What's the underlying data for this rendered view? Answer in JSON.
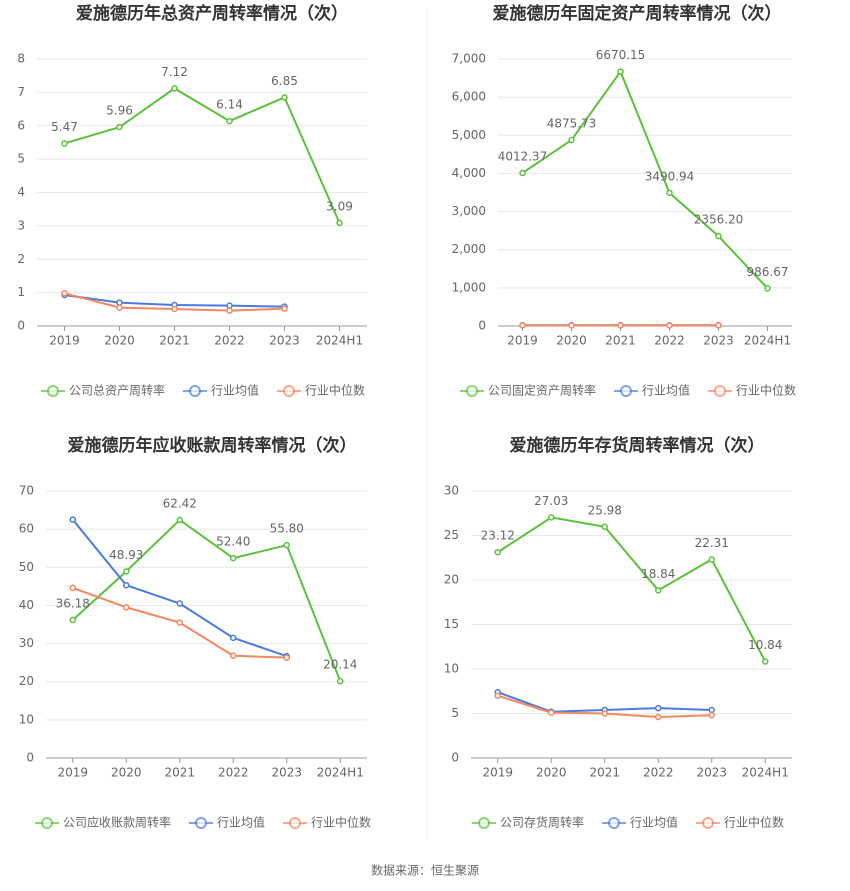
{
  "chart_data": [
    {
      "type": "line",
      "title": "爱施德历年总资产周转率情况（次）",
      "categories": [
        "2019",
        "2020",
        "2021",
        "2022",
        "2023",
        "2024H1"
      ],
      "series": [
        {
          "name": "公司总资产周转率",
          "color": "#5ac23a",
          "values": [
            5.47,
            5.96,
            7.12,
            6.14,
            6.85,
            3.09
          ],
          "value_labels": [
            "5.47",
            "5.96",
            "7.12",
            "6.14",
            "6.85",
            "3.09"
          ]
        },
        {
          "name": "行业均值",
          "color": "#4a7be0",
          "values": [
            0.93,
            0.7,
            0.63,
            0.61,
            0.58,
            null
          ]
        },
        {
          "name": "行业中位数",
          "color": "#f5875f",
          "values": [
            0.98,
            0.55,
            0.51,
            0.46,
            0.52,
            null
          ]
        }
      ],
      "ylim": [
        0,
        8
      ],
      "yticks": [
        0,
        1,
        2,
        3,
        4,
        5,
        6,
        7,
        8
      ],
      "grid": true,
      "legend": "bottom"
    },
    {
      "type": "line",
      "title": "爱施德历年固定资产周转率情况（次）",
      "categories": [
        "2019",
        "2020",
        "2021",
        "2022",
        "2023",
        "2024H1"
      ],
      "series": [
        {
          "name": "公司固定资产周转率",
          "color": "#5ac23a",
          "values": [
            4012.37,
            4875.73,
            6670.15,
            3490.94,
            2356.2,
            986.67
          ],
          "value_labels": [
            "4012.37",
            "4875.73",
            "6670.15",
            "3490.94",
            "2356.20",
            "986.67"
          ]
        },
        {
          "name": "行业均值",
          "color": "#4a7be0",
          "values": [
            20,
            20,
            21,
            20,
            20,
            null
          ]
        },
        {
          "name": "行业中位数",
          "color": "#f5875f",
          "values": [
            15,
            14,
            15,
            14,
            15,
            null
          ]
        }
      ],
      "ylim": [
        0,
        7000
      ],
      "yticks": [
        0,
        {
          "value": 1000,
          "label": "1,000"
        },
        {
          "value": 2000,
          "label": "2,000"
        },
        {
          "value": 3000,
          "label": "3,000"
        },
        {
          "value": 4000,
          "label": "4,000"
        },
        {
          "value": 5000,
          "label": "5,000"
        },
        {
          "value": 6000,
          "label": "6,000"
        },
        {
          "value": 7000,
          "label": "7,000"
        }
      ],
      "grid": true,
      "legend": "bottom"
    },
    {
      "type": "line",
      "title": "爱施德历年应收账款周转率情况（次）",
      "categories": [
        "2019",
        "2020",
        "2021",
        "2022",
        "2023",
        "2024H1"
      ],
      "series": [
        {
          "name": "公司应收账款周转率",
          "color": "#5ac23a",
          "values": [
            36.18,
            48.93,
            62.42,
            52.4,
            55.8,
            20.14
          ],
          "value_labels": [
            "36.18",
            "48.93",
            "62.42",
            "52.40",
            "55.80",
            "20.14"
          ]
        },
        {
          "name": "行业均值",
          "color": "#4a7be0",
          "values": [
            62.5,
            45.3,
            40.5,
            31.5,
            26.7,
            null
          ]
        },
        {
          "name": "行业中位数",
          "color": "#f5875f",
          "values": [
            44.6,
            39.5,
            35.5,
            26.8,
            26.3,
            null
          ]
        }
      ],
      "ylim": [
        0,
        70
      ],
      "yticks": [
        0,
        10,
        20,
        30,
        40,
        50,
        60,
        70
      ],
      "grid": true,
      "legend": "bottom"
    },
    {
      "type": "line",
      "title": "爱施德历年存货周转率情况（次）",
      "categories": [
        "2019",
        "2020",
        "2021",
        "2022",
        "2023",
        "2024H1"
      ],
      "series": [
        {
          "name": "公司存货周转率",
          "color": "#5ac23a",
          "values": [
            23.12,
            27.03,
            25.98,
            18.84,
            22.31,
            10.84
          ],
          "value_labels": [
            "23.12",
            "27.03",
            "25.98",
            "18.84",
            "22.31",
            "10.84"
          ]
        },
        {
          "name": "行业均值",
          "color": "#4a7be0",
          "values": [
            7.4,
            5.2,
            5.4,
            5.6,
            5.4,
            null
          ]
        },
        {
          "name": "行业中位数",
          "color": "#f5875f",
          "values": [
            7.0,
            5.1,
            5.0,
            4.6,
            4.8,
            null
          ]
        }
      ],
      "ylim": [
        0,
        30
      ],
      "yticks": [
        0,
        5,
        10,
        15,
        20,
        25,
        30
      ],
      "grid": true,
      "legend": "bottom"
    }
  ],
  "source": "数据来源：恒生聚源"
}
